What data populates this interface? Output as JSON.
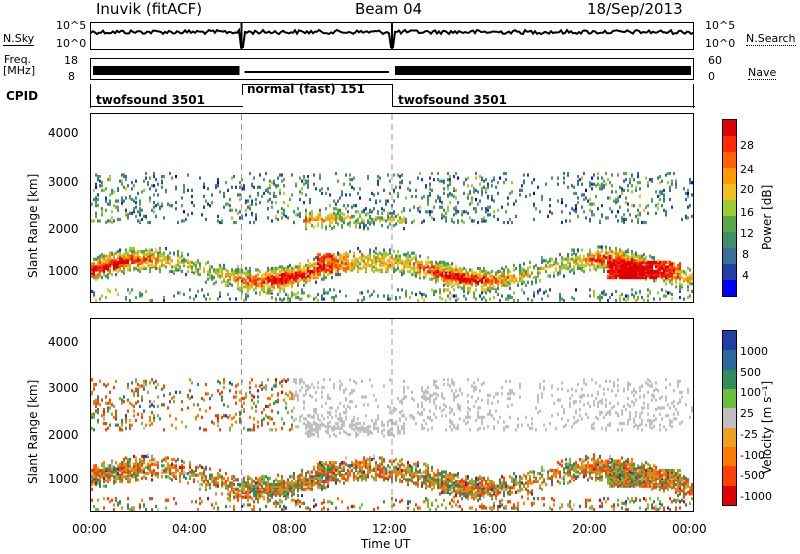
{
  "header": {
    "title": "Inuvik (fitACF)",
    "beam": "Beam 04",
    "date": "18/Sep/2013"
  },
  "nsky": {
    "label": "N.Sky",
    "right_label": "N.Search",
    "ticks_left": [
      "10^5",
      "10^0"
    ],
    "ticks_right": [
      "10^5",
      "10^0"
    ]
  },
  "freq": {
    "label_line1": "Freq.",
    "label_line2": "[MHz]",
    "ticks_left": [
      "18",
      "8"
    ],
    "ticks_right": [
      "60",
      "0"
    ],
    "right_label": "Nave"
  },
  "cpid": {
    "label": "CPID",
    "segments": [
      {
        "text": "twofsound 3501",
        "start_hour": 0,
        "end_hour": 6
      },
      {
        "text": "normal (fast) 151",
        "start_hour": 6,
        "end_hour": 12
      },
      {
        "text": "twofsound 3501",
        "start_hour": 12,
        "end_hour": 24
      }
    ]
  },
  "power_panel": {
    "ylabel": "Slant Range [km]",
    "yticks": [
      "4000",
      "3000",
      "2000",
      "1000"
    ],
    "colorbar_label": "Power [dB]",
    "colorbar_ticks": [
      "28",
      "24",
      "20",
      "16",
      "12",
      "8",
      "4"
    ],
    "colors": [
      "#0000ff",
      "#1f3fa8",
      "#3a6f97",
      "#3f8f6a",
      "#5aa84a",
      "#9acd32",
      "#f0c020",
      "#ff9a00",
      "#ff6000",
      "#ff2a00",
      "#e00000"
    ]
  },
  "velocity_panel": {
    "ylabel": "Slant Range [km]",
    "yticks": [
      "4000",
      "3000",
      "2000",
      "1000"
    ],
    "colorbar_label": "Velocity [m s⁻¹]",
    "colorbar_ticks": [
      "1000",
      "500",
      "100",
      "25",
      "-25",
      "-100",
      "-500",
      "-1000"
    ],
    "colors": [
      "#1f3fa8",
      "#2a6aa0",
      "#2f8f5a",
      "#6cbf3a",
      "#bfbfbf",
      "#f0a020",
      "#ff7a00",
      "#ff4000",
      "#e00000"
    ]
  },
  "xaxis": {
    "ticks": [
      "00:00",
      "04:00",
      "08:00",
      "12:00",
      "16:00",
      "20:00",
      "00:00"
    ],
    "label": "Time UT"
  },
  "chart_data": {
    "type": "heatmap",
    "x_range_hours": [
      0,
      24
    ],
    "y_range_km": [
      180,
      4600
    ],
    "mode_change_hours": [
      6,
      12
    ]
  }
}
